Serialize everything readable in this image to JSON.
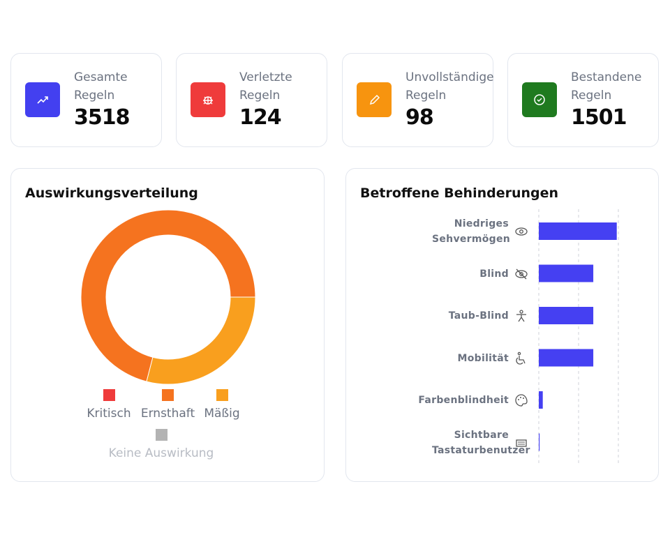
{
  "stats": [
    {
      "label": "Gesamte Regeln",
      "value": "3518",
      "color": "#4340f0",
      "icon": "trending-up-icon"
    },
    {
      "label": "Verletzte Regeln",
      "value": "124",
      "color": "#ef3b3b",
      "icon": "bug-icon"
    },
    {
      "label": "Unvollständige Regeln",
      "value": "98",
      "color": "#f7940f",
      "icon": "pencil-icon"
    },
    {
      "label": "Bestandene Regeln",
      "value": "1501",
      "color": "#1f7a1f",
      "icon": "check-circle-icon"
    }
  ],
  "impact": {
    "title": "Auswirkungsverteilung",
    "chart_data": {
      "type": "pie",
      "donut": true,
      "categories": [
        "Kritisch",
        "Ernsthaft",
        "Mäßig",
        "Keine Auswirkung"
      ],
      "values_percent": [
        0,
        71,
        29,
        0
      ],
      "colors": [
        "#ef3b3b",
        "#f5731f",
        "#f99f1e",
        "#b3b3b3"
      ],
      "legend_disabled": [
        "Keine Auswirkung"
      ],
      "legend": "bottom"
    }
  },
  "disabilities": {
    "title": "Betroffene Behinderungen",
    "chart_data": {
      "type": "bar",
      "orientation": "horizontal",
      "categories": [
        "Niedriges Sehvermögen",
        "Blind",
        "Taub-Blind",
        "Mobilität",
        "Farbenblindheit",
        "Sichtbare Tastaturbenutzer"
      ],
      "icons": [
        "eye-icon",
        "eye-off-icon",
        "person-icon",
        "wheelchair-icon",
        "palette-icon",
        "keyboard-icon"
      ],
      "values": [
        1.96,
        1.37,
        1.37,
        1.37,
        0.1,
        0.02
      ],
      "xlim": [
        0,
        2
      ],
      "grid": "dashed vertical",
      "color": "#4540f2"
    }
  }
}
